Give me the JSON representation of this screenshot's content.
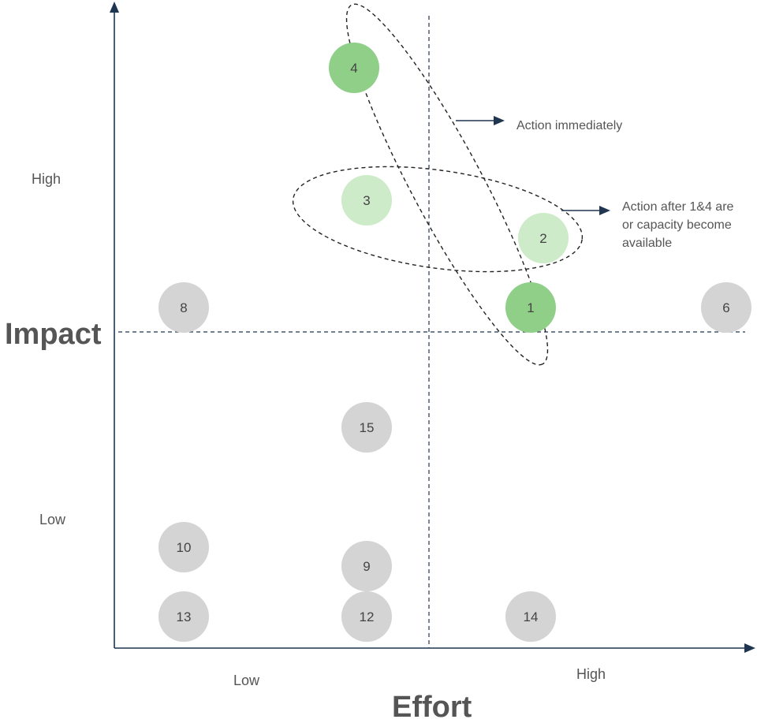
{
  "chart_data": {
    "type": "scatter",
    "title": "",
    "xlabel": "Effort",
    "ylabel": "Impact",
    "x_tick_labels": [
      "Low",
      "High"
    ],
    "y_tick_labels": [
      "High",
      "Low"
    ],
    "xlim": [
      0,
      10
    ],
    "ylim": [
      0,
      10
    ],
    "quadrant_split": {
      "x": 5,
      "y": 5
    },
    "grid": false,
    "colors": {
      "axis": "#1f3550",
      "action_immediately": "#8fcf88",
      "action_after": "#cdebc8",
      "other": "#d4d4d4",
      "text": "#555555"
    },
    "points": [
      {
        "label": "1",
        "x": 6.6,
        "y": 5.4,
        "group": "action_immediately"
      },
      {
        "label": "2",
        "x": 6.8,
        "y": 6.5,
        "group": "action_after"
      },
      {
        "label": "3",
        "x": 4.0,
        "y": 7.1,
        "group": "action_after"
      },
      {
        "label": "4",
        "x": 3.8,
        "y": 9.2,
        "group": "action_immediately"
      },
      {
        "label": "6",
        "x": 9.7,
        "y": 5.4,
        "group": "other"
      },
      {
        "label": "8",
        "x": 1.1,
        "y": 5.4,
        "group": "other"
      },
      {
        "label": "9",
        "x": 4.0,
        "y": 1.3,
        "group": "other"
      },
      {
        "label": "10",
        "x": 1.1,
        "y": 1.6,
        "group": "other"
      },
      {
        "label": "12",
        "x": 4.0,
        "y": 0.5,
        "group": "other"
      },
      {
        "label": "13",
        "x": 1.1,
        "y": 0.5,
        "group": "other"
      },
      {
        "label": "14",
        "x": 6.6,
        "y": 0.5,
        "group": "other"
      },
      {
        "label": "15",
        "x": 4.0,
        "y": 3.5,
        "group": "other"
      }
    ],
    "annotations": [
      {
        "text_lines": [
          "Action immediately"
        ]
      },
      {
        "text_lines": [
          "Action after 1&4 are",
          "or capacity become",
          "available"
        ]
      }
    ]
  }
}
